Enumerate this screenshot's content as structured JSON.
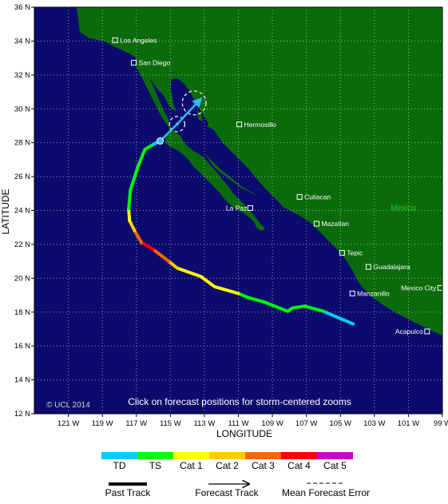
{
  "map": {
    "lon_min": -123,
    "lon_max": -99,
    "lat_min": 12,
    "lat_max": 36,
    "x_ticks": [
      {
        "lon": -121,
        "label": "121 W"
      },
      {
        "lon": -119,
        "label": "119 W"
      },
      {
        "lon": -117,
        "label": "117 W"
      },
      {
        "lon": -115,
        "label": "115 W"
      },
      {
        "lon": -113,
        "label": "113 W"
      },
      {
        "lon": -111,
        "label": "111 W"
      },
      {
        "lon": -109,
        "label": "109 W"
      },
      {
        "lon": -107,
        "label": "107 W"
      },
      {
        "lon": -105,
        "label": "105 W"
      },
      {
        "lon": -103,
        "label": "103 W"
      },
      {
        "lon": -101,
        "label": "101 W"
      },
      {
        "lon": -99,
        "label": "99 W"
      }
    ],
    "y_ticks": [
      {
        "lat": 36,
        "label": "36 N"
      },
      {
        "lat": 34,
        "label": "34 N"
      },
      {
        "lat": 32,
        "label": "32 N"
      },
      {
        "lat": 30,
        "label": "30 N"
      },
      {
        "lat": 28,
        "label": "28 N"
      },
      {
        "lat": 26,
        "label": "26 N"
      },
      {
        "lat": 24,
        "label": "24 N"
      },
      {
        "lat": 22,
        "label": "22 N"
      },
      {
        "lat": 20,
        "label": "20 N"
      },
      {
        "lat": 18,
        "label": "18 N"
      },
      {
        "lat": 16,
        "label": "16 N"
      },
      {
        "lat": 14,
        "label": "14 N"
      },
      {
        "lat": 12,
        "label": "12 N"
      }
    ],
    "xlabel": "LONGITUDE",
    "ylabel": "LATITUDE",
    "colors": {
      "ocean": "#0b0b6e",
      "land": "#0b6b0b",
      "frame": "#000000"
    }
  },
  "cities": [
    {
      "name": "Los Angeles",
      "lon": -118.25,
      "lat": 34.05
    },
    {
      "name": "San Diego",
      "lon": -117.15,
      "lat": 32.72
    },
    {
      "name": "Hermosillo",
      "lon": -110.95,
      "lat": 29.08
    },
    {
      "name": "Culiacan",
      "lon": -107.4,
      "lat": 24.8
    },
    {
      "name": "La Paz",
      "lon": -110.3,
      "lat": 24.14
    },
    {
      "name": "Mazatlan",
      "lon": -106.4,
      "lat": 23.22
    },
    {
      "name": "Tepic",
      "lon": -104.9,
      "lat": 21.5
    },
    {
      "name": "Guadalajara",
      "lon": -103.35,
      "lat": 20.67
    },
    {
      "name": "Manzanillo",
      "lon": -104.3,
      "lat": 19.1
    },
    {
      "name": "Mexico City",
      "lon": -99.13,
      "lat": 19.43
    },
    {
      "name": "Acapulco",
      "lon": -99.9,
      "lat": 16.86
    }
  ],
  "country_label": {
    "name": "Mexico",
    "lon": -101.3,
    "lat": 24.0
  },
  "track": {
    "points": [
      {
        "lon": -104.25,
        "lat": 17.3,
        "cat": "TD"
      },
      {
        "lon": -105.3,
        "lat": 17.75,
        "cat": "TD"
      },
      {
        "lon": -106.0,
        "lat": 18.05,
        "cat": "TS"
      },
      {
        "lon": -107.1,
        "lat": 18.35,
        "cat": "TS"
      },
      {
        "lon": -107.8,
        "lat": 18.25,
        "cat": "TS"
      },
      {
        "lon": -108.1,
        "lat": 18.05,
        "cat": "TS"
      },
      {
        "lon": -109.5,
        "lat": 18.6,
        "cat": "TS"
      },
      {
        "lon": -110.4,
        "lat": 18.85,
        "cat": "TS"
      },
      {
        "lon": -111.0,
        "lat": 19.1,
        "cat": "Cat 1"
      },
      {
        "lon": -112.4,
        "lat": 19.5,
        "cat": "Cat 1"
      },
      {
        "lon": -113.2,
        "lat": 20.1,
        "cat": "Cat 1"
      },
      {
        "lon": -114.6,
        "lat": 20.6,
        "cat": "Cat 2"
      },
      {
        "lon": -115.1,
        "lat": 21.0,
        "cat": "Cat 3"
      },
      {
        "lon": -116.0,
        "lat": 21.7,
        "cat": "Cat 4"
      },
      {
        "lon": -116.7,
        "lat": 22.1,
        "cat": "Cat 3"
      },
      {
        "lon": -117.1,
        "lat": 22.8,
        "cat": "Cat 2"
      },
      {
        "lon": -117.4,
        "lat": 23.4,
        "cat": "Cat 1"
      },
      {
        "lon": -117.45,
        "lat": 24.1,
        "cat": "TS"
      },
      {
        "lon": -117.35,
        "lat": 25.2,
        "cat": "TS"
      },
      {
        "lon": -116.9,
        "lat": 26.6,
        "cat": "TS"
      },
      {
        "lon": -116.5,
        "lat": 27.6,
        "cat": "TS"
      },
      {
        "lon": -116.0,
        "lat": 27.9,
        "cat": "TD"
      },
      {
        "lon": -115.6,
        "lat": 28.1,
        "cat": "TD"
      }
    ],
    "forecast": [
      {
        "lon": -115.6,
        "lat": 28.1
      },
      {
        "lon": -114.6,
        "lat": 29.1
      },
      {
        "lon": -113.2,
        "lat": 30.6
      }
    ],
    "error_circles": [
      {
        "lon": -114.6,
        "lat": 29.1,
        "r_deg": 0.45
      },
      {
        "lon": -113.6,
        "lat": 30.35,
        "r_deg": 0.7
      }
    ],
    "current_position": {
      "lon": -115.6,
      "lat": 28.1
    },
    "colors": {
      "forecast": "#33bbee",
      "error_circle": "#ffffff"
    }
  },
  "overlay": {
    "copyright": "© UCL 2014",
    "instruction": "Click on forecast positions for storm-centered zooms"
  },
  "legend": {
    "categories": [
      {
        "label": "TD",
        "color": "#00ccff"
      },
      {
        "label": "TS",
        "color": "#00ff00"
      },
      {
        "label": "Cat 1",
        "color": "#ffff00"
      },
      {
        "label": "Cat 2",
        "color": "#ffcc00"
      },
      {
        "label": "Cat 3",
        "color": "#ff6600"
      },
      {
        "label": "Cat 4",
        "color": "#ff0000"
      },
      {
        "label": "Cat 5",
        "color": "#cc00cc"
      }
    ],
    "keys": [
      {
        "label": "Past Track"
      },
      {
        "label": "Forecast Track"
      },
      {
        "label": "Mean Forecast Error"
      }
    ]
  }
}
